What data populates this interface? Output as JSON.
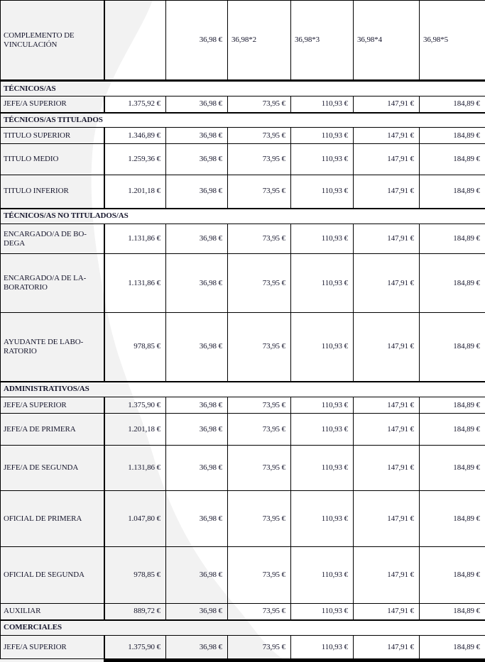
{
  "page": {
    "background_color": "#ffffff",
    "watermark_color": "#f2f2f2",
    "text_color": "#16162c",
    "border_color": "#000000"
  },
  "table": {
    "header": {
      "row_label": "COMPLEMENTO DE\nVINCULACIÓN",
      "columns": [
        "",
        "36,98 €",
        "36,98*2",
        "36,98*3",
        "36,98*4",
        "36,98*5"
      ]
    },
    "rows": [
      {
        "type": "section",
        "label": "TÉCNICOS/AS"
      },
      {
        "type": "data",
        "label": "JEFE/A SUPERIOR",
        "values": [
          "1.375,92 €",
          "36,98 €",
          "73,95 €",
          "110,93 €",
          "147,91 €",
          "184,89 €"
        ]
      },
      {
        "type": "section",
        "label": "TÉCNICOS/AS TITULADOS"
      },
      {
        "type": "data",
        "label": "TITULO SUPERIOR",
        "values": [
          "1.346,89 €",
          "36,98 €",
          "73,95 €",
          "110,93 €",
          "147,91 €",
          "184,89 €"
        ]
      },
      {
        "type": "data",
        "label": "TITULO MEDIO",
        "values": [
          "1.259,36 €",
          "36,98 €",
          "73,95 €",
          "110,93 €",
          "147,91 €",
          "184,89 €"
        ]
      },
      {
        "type": "data",
        "label": "TITULO INFERIOR",
        "values": [
          "1.201,18 €",
          "36,98 €",
          "73,95 €",
          "110,93 €",
          "147,91 €",
          "184,89 €"
        ]
      },
      {
        "type": "section",
        "label": "TÉCNICOS/AS NO TITULADOS/AS"
      },
      {
        "type": "data",
        "label": "ENCARGADO/A DE BO-\nDEGA",
        "values": [
          "1.131,86 €",
          "36,98 €",
          "73,95 €",
          "110,93 €",
          "147,91 €",
          "184,89 €"
        ]
      },
      {
        "type": "data",
        "label": "ENCARGADO/A DE LA-\nBORATORIO",
        "values": [
          "1.131,86 €",
          "36,98 €",
          "73,95 €",
          "110,93 €",
          "147,91 €",
          "184,89 €"
        ]
      },
      {
        "type": "data",
        "label": "AYUDANTE DE LABO-\nRATORIO",
        "values": [
          "978,85 €",
          "36,98 €",
          "73,95 €",
          "110,93 €",
          "147,91 €",
          "184,89 €"
        ]
      },
      {
        "type": "section",
        "label": "ADMINISTRATIVOS/AS"
      },
      {
        "type": "data",
        "label": "JEFE/A SUPERIOR",
        "values": [
          "1.375,90 €",
          "36,98 €",
          "73,95 €",
          "110,93 €",
          "147,91 €",
          "184,89 €"
        ]
      },
      {
        "type": "data",
        "label": "JEFE/A DE PRIMERA",
        "values": [
          "1.201,18 €",
          "36,98 €",
          "73,95 €",
          "110,93 €",
          "147,91 €",
          "184,89 €"
        ]
      },
      {
        "type": "data",
        "label": "JEFE/A DE SEGUNDA",
        "values": [
          "1.131,86 €",
          "36,98 €",
          "73,95 €",
          "110,93 €",
          "147,91 €",
          "184,89 €"
        ]
      },
      {
        "type": "data",
        "label": "OFICIAL DE PRIMERA",
        "values": [
          "1.047,80 €",
          "36,98 €",
          "73,95 €",
          "110,93 €",
          "147,91 €",
          "184,89 €"
        ]
      },
      {
        "type": "data",
        "label": "OFICIAL DE SEGUNDA",
        "values": [
          "978,85 €",
          "36,98 €",
          "73,95 €",
          "110,93 €",
          "147,91 €",
          "184,89 €"
        ]
      },
      {
        "type": "data",
        "label": "AUXILIAR",
        "values": [
          "889,72 €",
          "36,98 €",
          "73,95 €",
          "110,93 €",
          "147,91 €",
          "184,89 €"
        ]
      },
      {
        "type": "section",
        "label": "COMERCIALES"
      },
      {
        "type": "data",
        "label": "JEFE/A SUPERIOR",
        "values": [
          "1.375,90 €",
          "36,98 €",
          "73,95 €",
          "110,93 €",
          "147,91 €",
          "184,89 €"
        ]
      }
    ]
  }
}
